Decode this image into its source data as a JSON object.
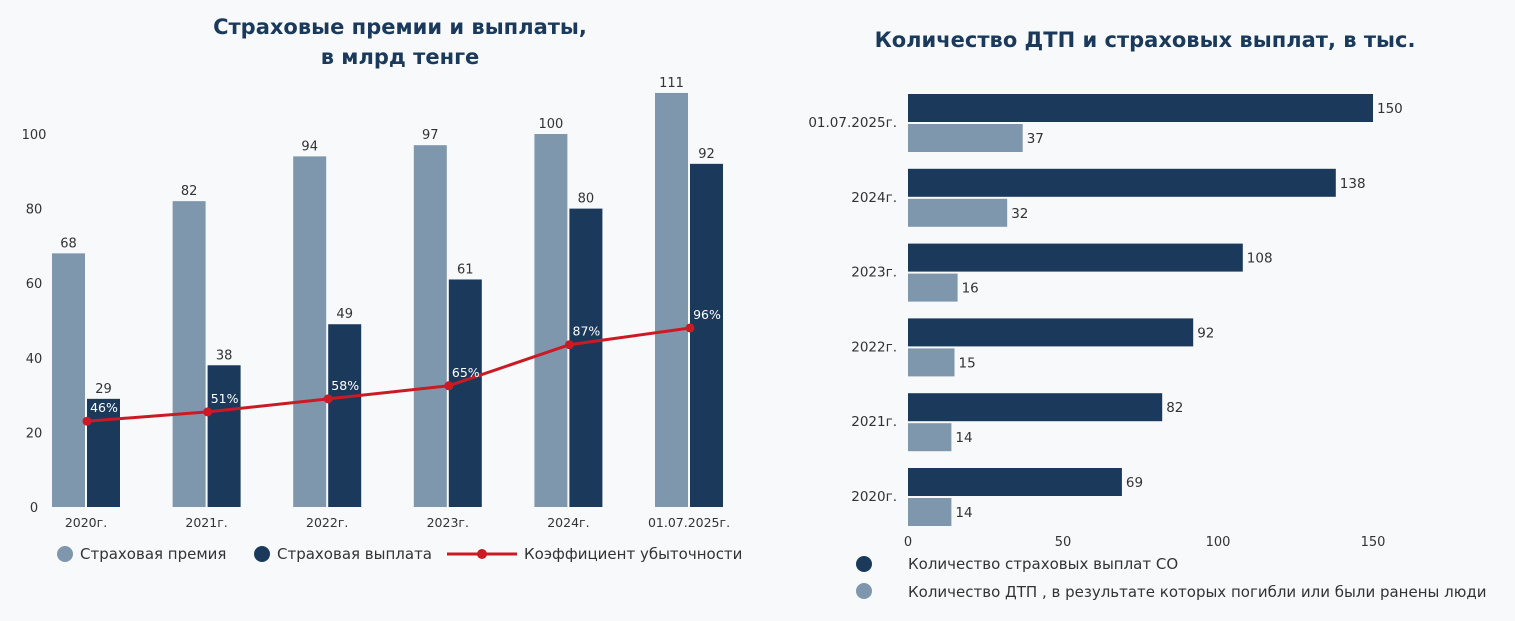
{
  "colors": {
    "premium": "#7f97ad",
    "payout": "#1b3a5b",
    "ratio": "#cc1a24",
    "axis_text": "#333333"
  },
  "chart_data": [
    {
      "type": "bar",
      "title_line1": "Страховые премии и выплаты,",
      "title_line2": "в млрд тенге",
      "categories": [
        "2020г.",
        "2021г.",
        "2022г.",
        "2023г.",
        "2024г.",
        "01.07.2025г."
      ],
      "series": [
        {
          "name": "Страховая премия",
          "values": [
            68,
            82,
            94,
            97,
            100,
            111
          ]
        },
        {
          "name": "Страховая выплата",
          "values": [
            29,
            38,
            49,
            61,
            80,
            92
          ]
        }
      ],
      "line_series": {
        "name": "Коэффициент убыточности",
        "values": [
          46,
          51,
          58,
          65,
          87,
          96
        ],
        "labels": [
          "46%",
          "51%",
          "58%",
          "65%",
          "87%",
          "96%"
        ]
      },
      "y_ticks": [
        0,
        20,
        40,
        60,
        80,
        100
      ],
      "ylim": [
        0,
        115
      ],
      "legend_position": "bottom"
    },
    {
      "type": "bar",
      "orientation": "horizontal",
      "title": "Количество ДТП и страховых выплат, в тыс.",
      "categories": [
        "01.07.2025г.",
        "2024г.",
        "2023г.",
        "2022г.",
        "2021г.",
        "2020г."
      ],
      "series": [
        {
          "name": "Количество страховых выплат СО",
          "values": [
            150,
            138,
            108,
            92,
            82,
            69
          ]
        },
        {
          "name": "Количество ДТП , в результате которых погибли или были ранены люди",
          "values": [
            37,
            32,
            16,
            15,
            14,
            14
          ]
        }
      ],
      "x_ticks": [
        0,
        50,
        100,
        150
      ],
      "xlim": [
        0,
        150
      ],
      "legend_position": "bottom"
    }
  ]
}
